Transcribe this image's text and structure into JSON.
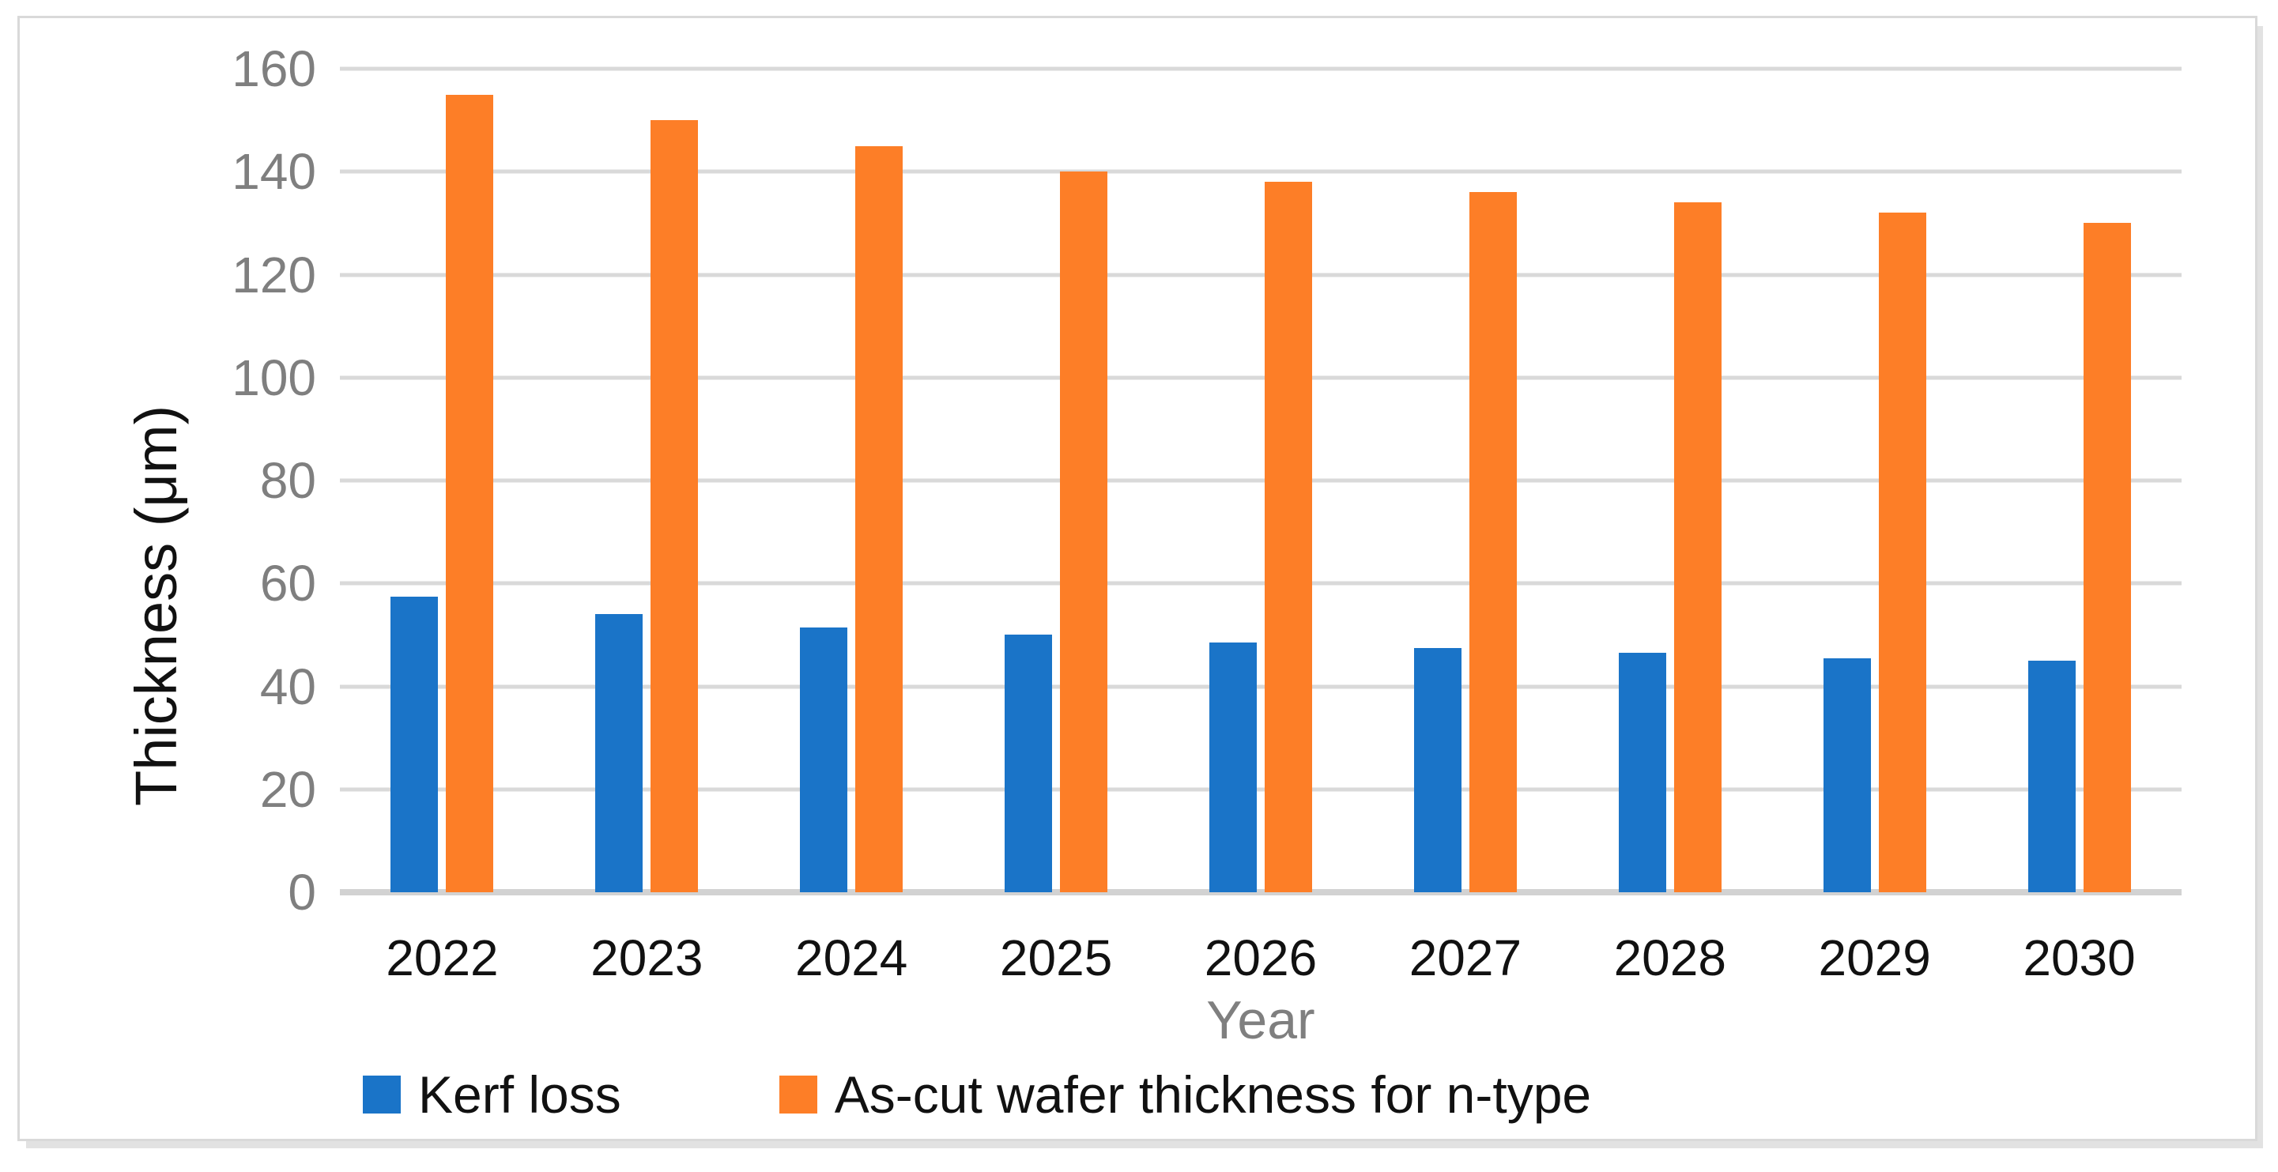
{
  "figure": {
    "background": "#ffffff",
    "border_color": "#d9d9d9"
  },
  "chart_data": {
    "type": "bar",
    "title": "",
    "categories": [
      "2022",
      "2023",
      "2024",
      "2025",
      "2026",
      "2027",
      "2028",
      "2029",
      "2030"
    ],
    "series": [
      {
        "name": "Kerf loss",
        "color": "#1a74c8",
        "values": [
          57.5,
          54,
          51.5,
          50,
          48.5,
          47.5,
          46.5,
          45.5,
          45
        ]
      },
      {
        "name": "As-cut wafer thickness for n-type",
        "color": "#fd7e27",
        "values": [
          155,
          150,
          145,
          140,
          138,
          136,
          134,
          132,
          130
        ]
      }
    ],
    "xlabel": "Year",
    "ylabel": "Thickness (μm)",
    "ylim": [
      0,
      160
    ],
    "yticks": [
      0,
      20,
      40,
      60,
      80,
      100,
      120,
      140,
      160
    ],
    "grid": "horizontal-on",
    "legend_position": "bottom-left",
    "style": {
      "gridline_color": "#d9d9d9",
      "axis_line_color": "#d2d2d2",
      "tick_label_color": "#7f7f7f",
      "category_label_color": "#111111",
      "xlabel_color": "#7f7f7f",
      "ylabel_color": "#111111"
    }
  }
}
